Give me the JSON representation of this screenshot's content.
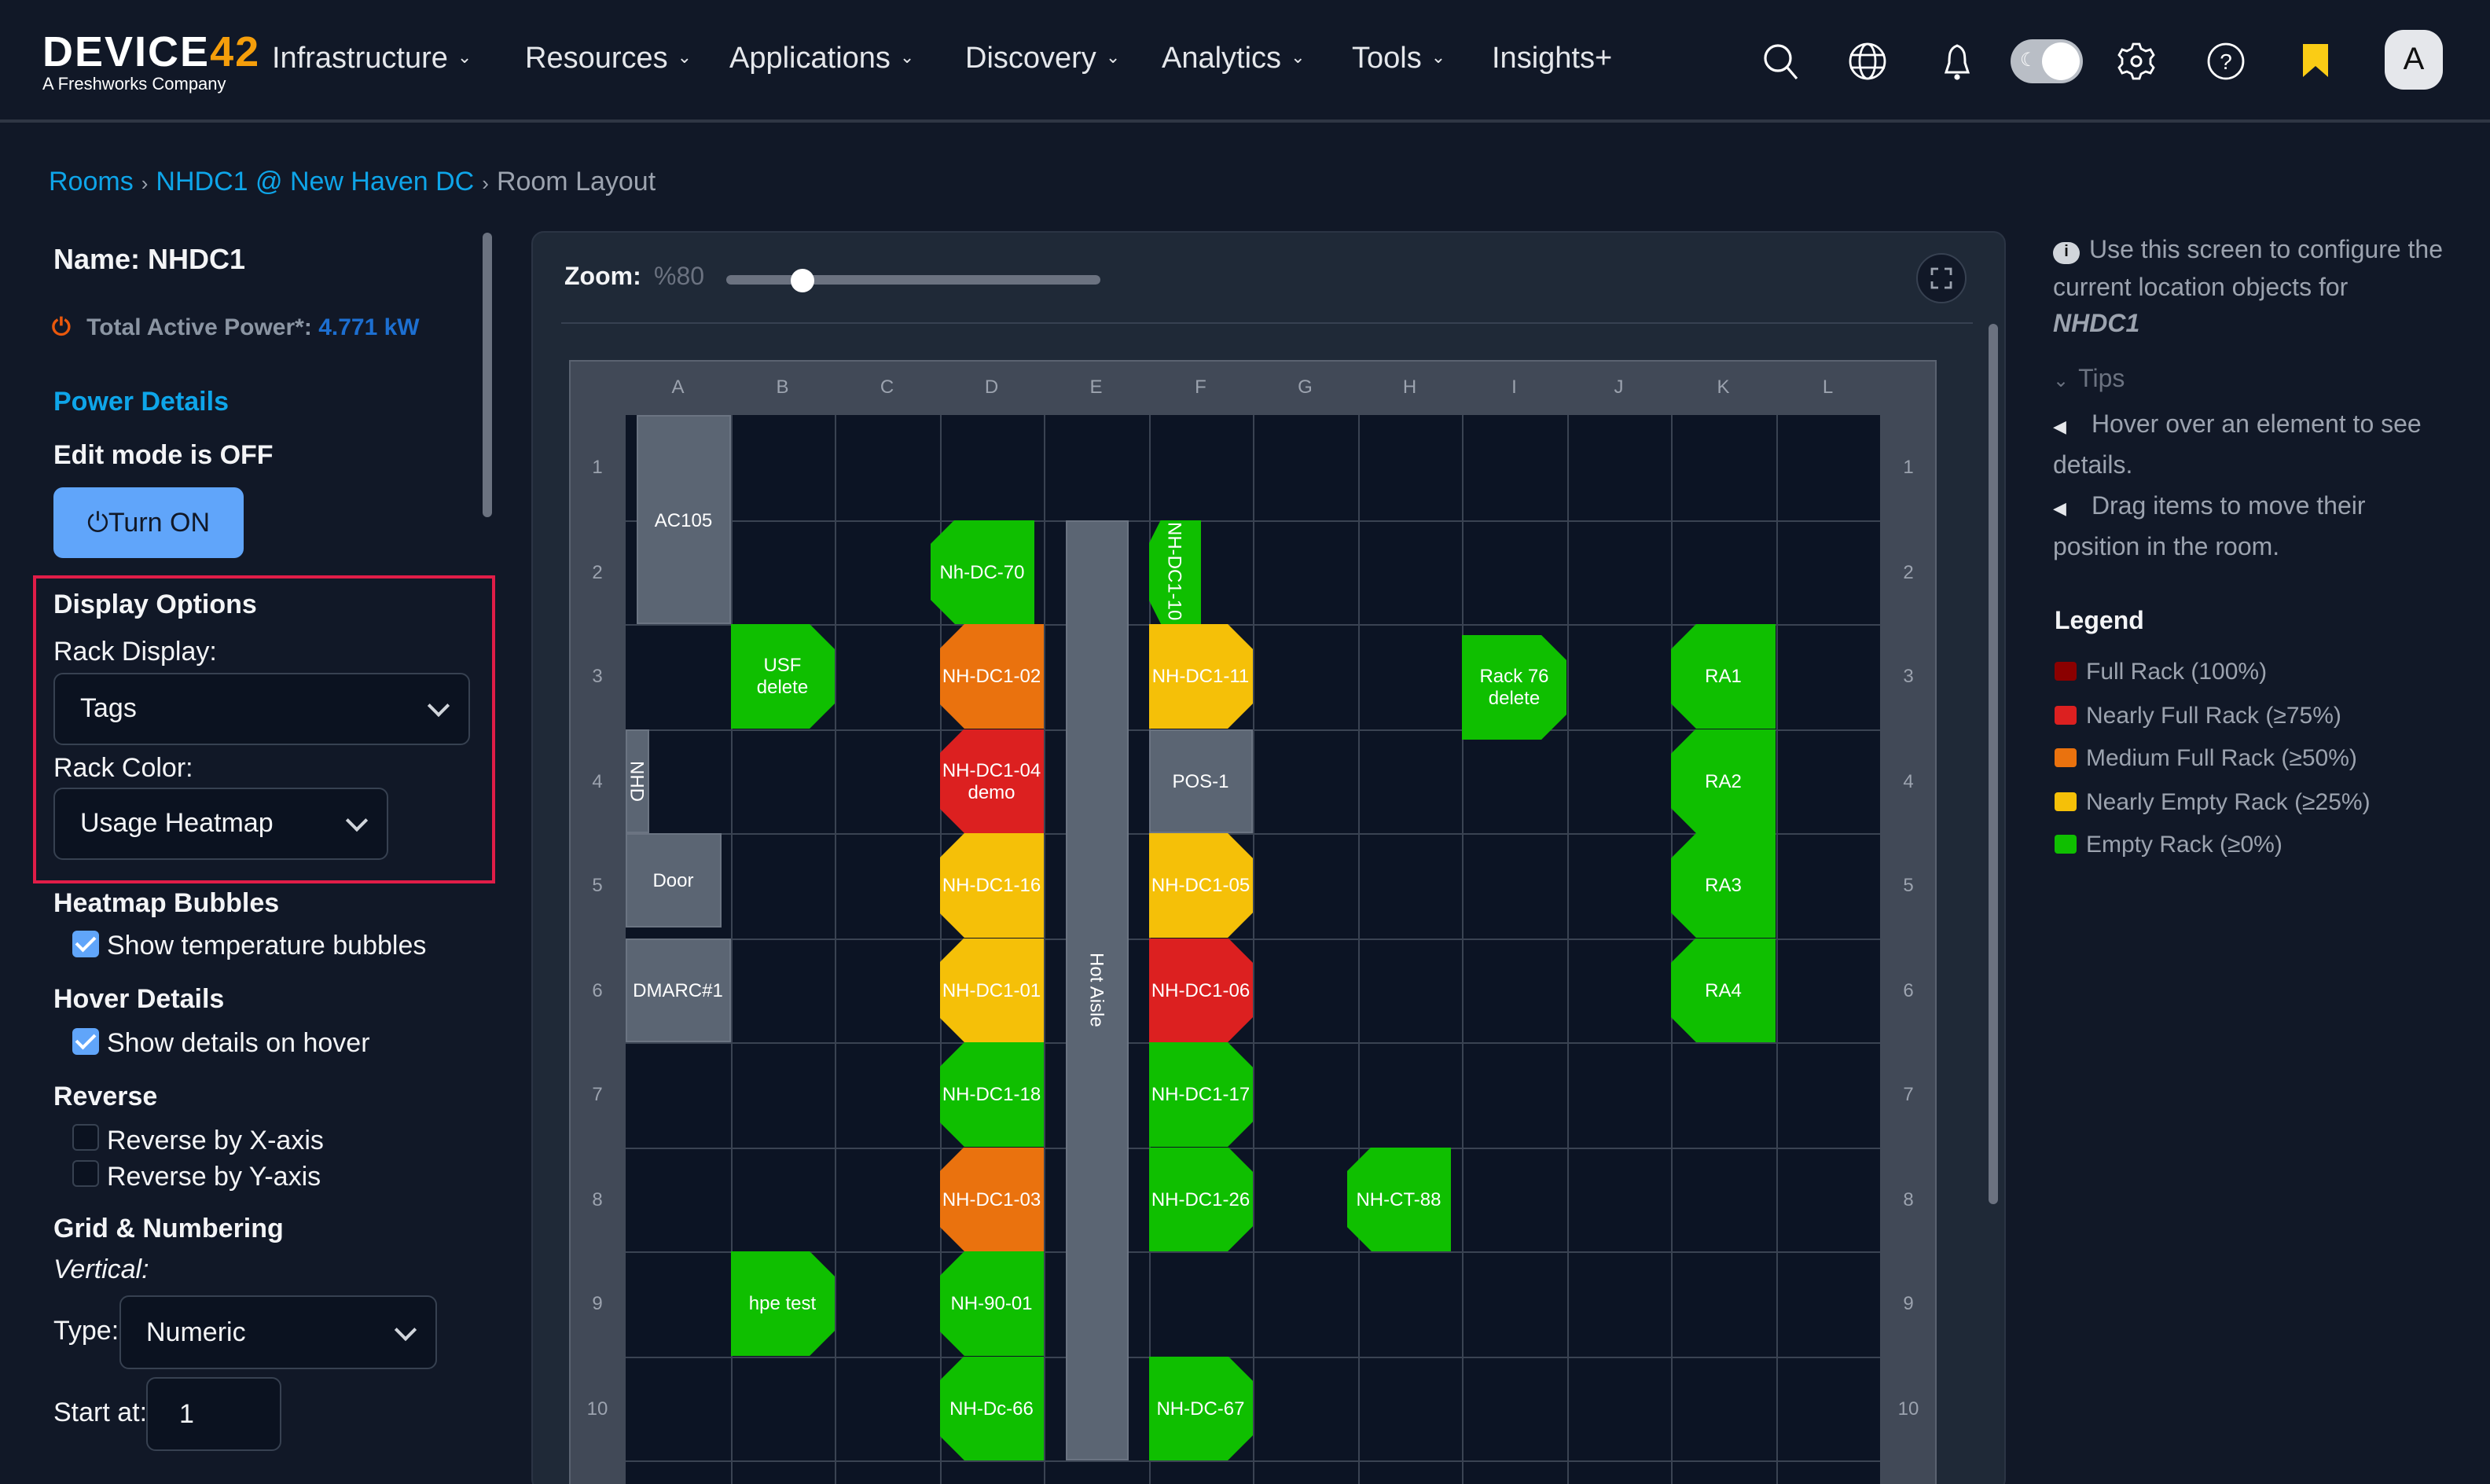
{
  "header": {
    "logo_text": "DEVICE42",
    "logo_tagline": "A Freshworks Company",
    "nav": [
      {
        "label": "Infrastructure",
        "dropdown": true
      },
      {
        "label": "Resources",
        "dropdown": true
      },
      {
        "label": "Applications",
        "dropdown": true
      },
      {
        "label": "Discovery",
        "dropdown": true
      },
      {
        "label": "Analytics",
        "dropdown": true
      },
      {
        "label": "Tools",
        "dropdown": true
      },
      {
        "label": "Insights+",
        "dropdown": false
      }
    ],
    "icons": [
      "search-icon",
      "globe-icon",
      "bell-icon",
      "theme-toggle",
      "gear-icon",
      "help-icon",
      "bookmark-icon"
    ],
    "avatar_initial": "A",
    "bookmark_color": "#facc15"
  },
  "breadcrumb": {
    "items": [
      "Rooms",
      "NHDC1 @ New Haven DC"
    ],
    "current": "Room Layout"
  },
  "left": {
    "name_label": "Name: NHDC1",
    "power_label": "Total Active Power*:",
    "power_value": "4.771 kW",
    "power_details_link": "Power Details",
    "edit_mode": "Edit mode is OFF",
    "turn_on_button": "Turn ON",
    "display_options_title": "Display Options",
    "rack_display_label": "Rack Display:",
    "rack_display_value": "Tags",
    "rack_color_label": "Rack Color:",
    "rack_color_value": "Usage Heatmap",
    "heatmap_title": "Heatmap Bubbles",
    "heatmap_checkbox": {
      "label": "Show temperature bubbles",
      "checked": true
    },
    "hover_title": "Hover Details",
    "hover_checkbox": {
      "label": "Show details on hover",
      "checked": true
    },
    "reverse_title": "Reverse",
    "reverse_x": {
      "label": "Reverse by X-axis",
      "checked": false
    },
    "reverse_y": {
      "label": "Reverse by Y-axis",
      "checked": false
    },
    "grid_title": "Grid & Numbering",
    "vertical_label": "Vertical:",
    "type_label": "Type:",
    "type_value": "Numeric",
    "start_label": "Start at:",
    "start_value": "1"
  },
  "layout": {
    "zoom_label": "Zoom:",
    "zoom_value": "%80",
    "zoom_percent": 80,
    "columns": [
      "A",
      "B",
      "C",
      "D",
      "E",
      "F",
      "G",
      "H",
      "I",
      "J",
      "K",
      "L"
    ],
    "rows": [
      "1",
      "2",
      "3",
      "4",
      "5",
      "6",
      "7",
      "8",
      "9",
      "10"
    ],
    "items": [
      {
        "label": "AC105",
        "cell": "A1",
        "rows": 2,
        "type": "object"
      },
      {
        "label": "Nh-DC-70",
        "cell": "D2",
        "rows": 1,
        "status": "empty",
        "chamfer": "left"
      },
      {
        "label": "Hot Aisle",
        "cell": "E2",
        "rows": 9,
        "type": "object",
        "vertical": true
      },
      {
        "label": "NH-DC1-10",
        "cell": "F2",
        "rows": 1,
        "status": "empty",
        "chamfer": "left",
        "vertical": true
      },
      {
        "label": "USF\ndelete",
        "cell": "B3",
        "rows": 1,
        "status": "empty",
        "chamfer": "right"
      },
      {
        "label": "NH-DC1-02",
        "cell": "D3",
        "rows": 1,
        "status": "medium",
        "chamfer": "left"
      },
      {
        "label": "NH-DC1-11",
        "cell": "F3",
        "rows": 1,
        "status": "nearly_empty",
        "chamfer": "right"
      },
      {
        "label": "Rack 76\ndelete",
        "cell": "I3",
        "rows": 1,
        "status": "empty",
        "chamfer": "right"
      },
      {
        "label": "RA1",
        "cell": "K3",
        "rows": 1,
        "status": "empty",
        "chamfer": "left"
      },
      {
        "label": "NHD",
        "cell": "A4",
        "rows": 1,
        "type": "object",
        "vertical": true
      },
      {
        "label": "NH-DC1-04\ndemo",
        "cell": "D4",
        "rows": 1,
        "status": "nearly_full",
        "chamfer": "left"
      },
      {
        "label": "POS-1",
        "cell": "F4",
        "rows": 1,
        "type": "object"
      },
      {
        "label": "RA2",
        "cell": "K4",
        "rows": 1,
        "status": "empty",
        "chamfer": "left"
      },
      {
        "label": "Door",
        "cell": "A5",
        "rows": 1,
        "type": "object"
      },
      {
        "label": "NH-DC1-16",
        "cell": "D5",
        "rows": 1,
        "status": "nearly_empty",
        "chamfer": "left"
      },
      {
        "label": "NH-DC1-05",
        "cell": "F5",
        "rows": 1,
        "status": "nearly_empty",
        "chamfer": "right"
      },
      {
        "label": "RA3",
        "cell": "K5",
        "rows": 1,
        "status": "empty",
        "chamfer": "left"
      },
      {
        "label": "DMARC#1",
        "cell": "A6",
        "rows": 1,
        "type": "object"
      },
      {
        "label": "NH-DC1-01",
        "cell": "D6",
        "rows": 1,
        "status": "nearly_empty",
        "chamfer": "left"
      },
      {
        "label": "NH-DC1-06",
        "cell": "F6",
        "rows": 1,
        "status": "nearly_full",
        "chamfer": "right"
      },
      {
        "label": "RA4",
        "cell": "K6",
        "rows": 1,
        "status": "empty",
        "chamfer": "left"
      },
      {
        "label": "NH-DC1-18",
        "cell": "D7",
        "rows": 1,
        "status": "empty",
        "chamfer": "left"
      },
      {
        "label": "NH-DC1-17",
        "cell": "F7",
        "rows": 1,
        "status": "empty",
        "chamfer": "right"
      },
      {
        "label": "NH-DC1-03",
        "cell": "D8",
        "rows": 1,
        "status": "medium",
        "chamfer": "left"
      },
      {
        "label": "NH-DC1-26",
        "cell": "F8",
        "rows": 1,
        "status": "empty",
        "chamfer": "right"
      },
      {
        "label": "NH-CT-88",
        "cell": "H8",
        "rows": 1,
        "status": "empty",
        "chamfer": "left"
      },
      {
        "label": "hpe test",
        "cell": "B9",
        "rows": 1,
        "status": "empty",
        "chamfer": "right"
      },
      {
        "label": "NH-90-01",
        "cell": "D9",
        "rows": 1,
        "status": "empty",
        "chamfer": "left"
      },
      {
        "label": "NH-Dc-66",
        "cell": "D10",
        "rows": 1,
        "status": "empty",
        "chamfer": "left"
      },
      {
        "label": "NH-DC-67",
        "cell": "F10",
        "rows": 1,
        "status": "empty",
        "chamfer": "right"
      }
    ]
  },
  "right": {
    "info_text": "Use this screen to configure the current location objects for",
    "info_name": "NHDC1",
    "tips_label": "Tips",
    "tips": [
      "Hover over an element to see details.",
      "Drag items to move their position in the room."
    ],
    "legend_title": "Legend",
    "legend": [
      {
        "key": "full",
        "label": "Full Rack (100%)",
        "color": "#8b0000"
      },
      {
        "key": "nearly_full",
        "label": "Nearly Full Rack (≥75%)",
        "color": "#dc2020"
      },
      {
        "key": "medium",
        "label": "Medium Full Rack (≥50%)",
        "color": "#ea720e"
      },
      {
        "key": "nearly_empty",
        "label": "Nearly Empty Rack (≥25%)",
        "color": "#f5c008"
      },
      {
        "key": "empty",
        "label": "Empty Rack (≥0%)",
        "color": "#0fbf00"
      }
    ]
  }
}
